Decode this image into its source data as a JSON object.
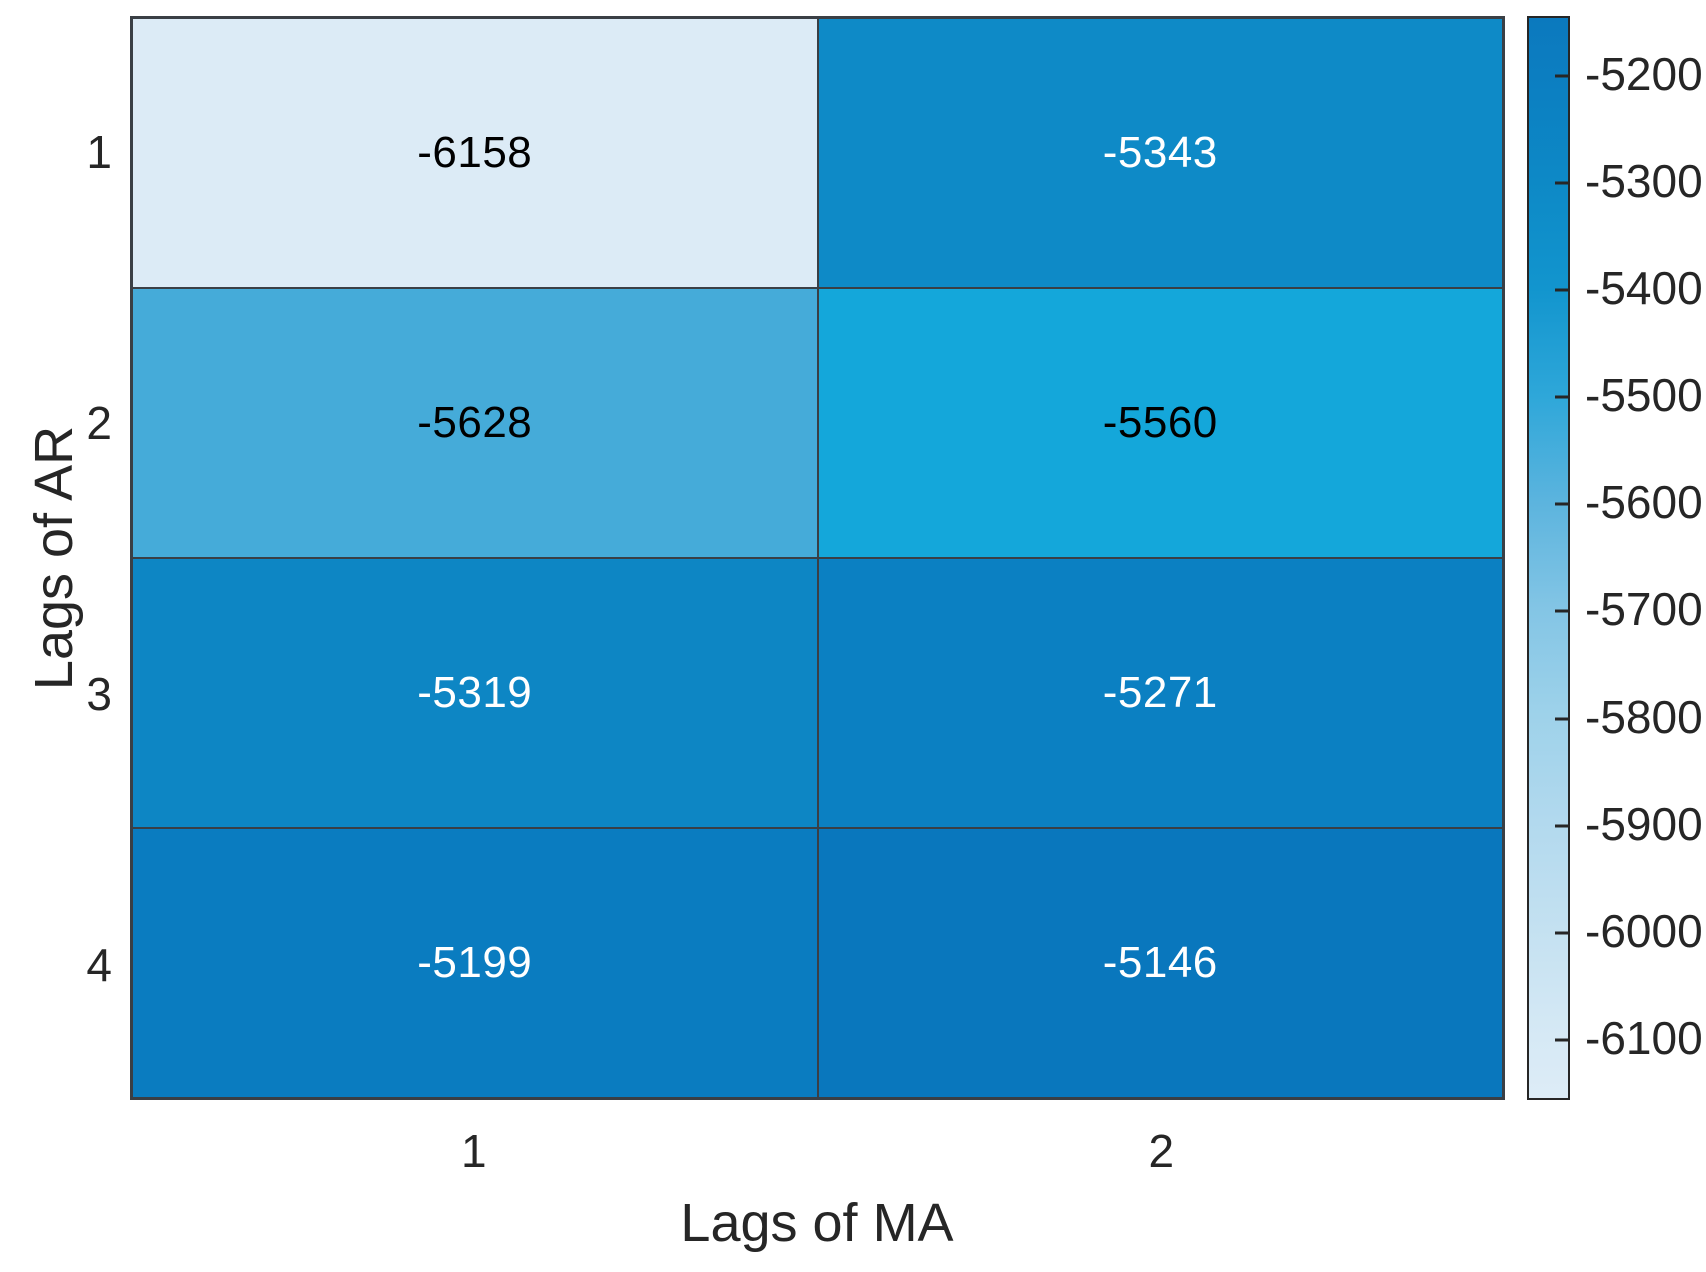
{
  "chart_data": {
    "type": "heatmap",
    "title": "",
    "xlabel": "Lags of MA",
    "ylabel": "Lags of AR",
    "x_categories": [
      "1",
      "2"
    ],
    "y_categories": [
      "1",
      "2",
      "3",
      "4"
    ],
    "values": [
      [
        -6158,
        -5343
      ],
      [
        -5628,
        -5560
      ],
      [
        -5319,
        -5271
      ],
      [
        -5199,
        -5146
      ]
    ],
    "cell_labels": [
      [
        "-6158",
        "-5343"
      ],
      [
        "-5628",
        "-5560"
      ],
      [
        "-5319",
        "-5271"
      ],
      [
        "-5199",
        "-5146"
      ]
    ],
    "cell_colors": [
      [
        "#dcebf6",
        "#0e8ac7"
      ],
      [
        "#45abd9",
        "#14a7da"
      ],
      [
        "#0d86c4",
        "#0b80c2"
      ],
      [
        "#0a7cc0",
        "#0977bd"
      ]
    ],
    "cell_text_colors": [
      [
        "#000000",
        "#ffffff"
      ],
      [
        "#000000",
        "#000000"
      ],
      [
        "#ffffff",
        "#ffffff"
      ],
      [
        "#ffffff",
        "#ffffff"
      ]
    ],
    "grid_on": true,
    "legend_position": "right-colorbar",
    "colorbar": {
      "min": -6158,
      "max": -5146,
      "ticks": [
        -5200,
        -5300,
        -5400,
        -5500,
        -5600,
        -5700,
        -5800,
        -5900,
        -6000,
        -6100
      ],
      "gradient_stops": [
        {
          "pos": 0.0,
          "color": "#ddecf7"
        },
        {
          "pos": 0.057,
          "color": "#d6e9f5"
        },
        {
          "pos": 0.156,
          "color": "#c4e1f1"
        },
        {
          "pos": 0.255,
          "color": "#b2d9ee"
        },
        {
          "pos": 0.354,
          "color": "#9ed2ea"
        },
        {
          "pos": 0.453,
          "color": "#83c5e5"
        },
        {
          "pos": 0.551,
          "color": "#5cb4de"
        },
        {
          "pos": 0.65,
          "color": "#2ea7d9"
        },
        {
          "pos": 0.749,
          "color": "#1295ce"
        },
        {
          "pos": 0.848,
          "color": "#0d89c6"
        },
        {
          "pos": 0.947,
          "color": "#0c7ec1"
        },
        {
          "pos": 1.0,
          "color": "#0b79be"
        }
      ]
    },
    "colors": {
      "grid_line": "#3a3f45",
      "axis_text": "#262626",
      "background": "#ffffff"
    }
  }
}
